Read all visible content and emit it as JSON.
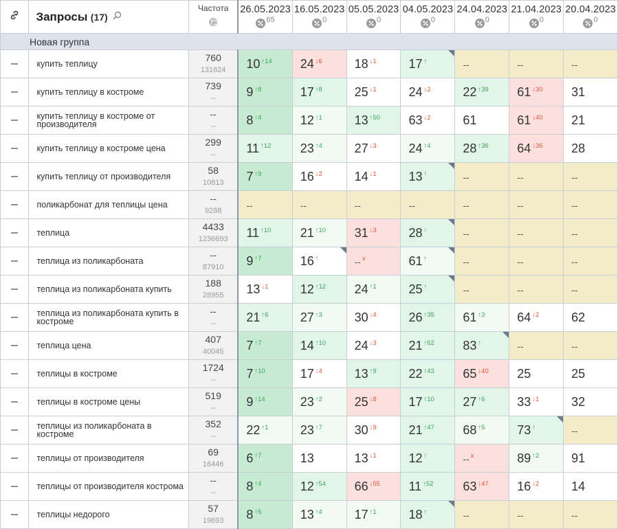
{
  "header": {
    "title": "Запросы",
    "count": "(17)",
    "freq_label": "Частота",
    "dates": [
      {
        "date": "26.05.2023",
        "count": "65"
      },
      {
        "date": "16.05.2023",
        "count": "0"
      },
      {
        "date": "05.05.2023",
        "count": "0"
      },
      {
        "date": "04.05.2023",
        "count": "0"
      },
      {
        "date": "24.04.2023",
        "count": "0"
      },
      {
        "date": "21.04.2023",
        "count": "0"
      },
      {
        "date": "20.04.2023",
        "count": "0"
      }
    ]
  },
  "group": {
    "name": "Новая группа"
  },
  "colors": {
    "green_strong": "#c6ebd2",
    "green": "#e2f5e9",
    "green_light": "#f2faf4",
    "red": "#fbe0de",
    "yellow": "#f4ecc9",
    "up": "#3aa65a",
    "down": "#e0553a"
  },
  "rows": [
    {
      "query": "купить теплицу",
      "freq": "760",
      "freq2": "131624",
      "cells": [
        {
          "v": "10",
          "d": "↑14",
          "t": "up",
          "bg": "g1"
        },
        {
          "v": "24",
          "d": "↓6",
          "t": "dn",
          "bg": "r"
        },
        {
          "v": "18",
          "d": "↓1",
          "t": "dn",
          "bg": "w"
        },
        {
          "v": "17",
          "d": "↑",
          "t": "up",
          "bg": "g2",
          "tri": true
        },
        {
          "v": "--",
          "bg": "y",
          "nd": true
        },
        {
          "v": "--",
          "bg": "y",
          "nd": true
        },
        {
          "v": "--",
          "bg": "y",
          "nd": true
        }
      ]
    },
    {
      "query": "купить теплицу в костроме",
      "freq": "739",
      "freq2": "--",
      "cells": [
        {
          "v": "9",
          "d": "↑8",
          "t": "up",
          "bg": "g1"
        },
        {
          "v": "17",
          "d": "↑8",
          "t": "up",
          "bg": "g2"
        },
        {
          "v": "25",
          "d": "↓1",
          "t": "dn",
          "bg": "w"
        },
        {
          "v": "24",
          "d": "↓2",
          "t": "dn",
          "bg": "w"
        },
        {
          "v": "22",
          "d": "↑39",
          "t": "up",
          "bg": "g2"
        },
        {
          "v": "61",
          "d": "↓30",
          "t": "dn",
          "bg": "r"
        },
        {
          "v": "31",
          "bg": "w"
        }
      ]
    },
    {
      "query": "купить теплицу в костроме от производителя",
      "freq": "--",
      "freq2": "--",
      "cells": [
        {
          "v": "8",
          "d": "↑4",
          "t": "up",
          "bg": "g1"
        },
        {
          "v": "12",
          "d": "↑1",
          "t": "up",
          "bg": "g3"
        },
        {
          "v": "13",
          "d": "↑50",
          "t": "up",
          "bg": "g2"
        },
        {
          "v": "63",
          "d": "↓2",
          "t": "dn",
          "bg": "w"
        },
        {
          "v": "61",
          "bg": "w"
        },
        {
          "v": "61",
          "d": "↓40",
          "t": "dn",
          "bg": "r"
        },
        {
          "v": "21",
          "bg": "w"
        }
      ]
    },
    {
      "query": "купить теплицу в костроме цена",
      "freq": "299",
      "freq2": "--",
      "cells": [
        {
          "v": "11",
          "d": "↑12",
          "t": "up",
          "bg": "g2"
        },
        {
          "v": "23",
          "d": "↑4",
          "t": "up",
          "bg": "g3"
        },
        {
          "v": "27",
          "d": "↓3",
          "t": "dn",
          "bg": "w"
        },
        {
          "v": "24",
          "d": "↑4",
          "t": "up",
          "bg": "g3"
        },
        {
          "v": "28",
          "d": "↑36",
          "t": "up",
          "bg": "g2"
        },
        {
          "v": "64",
          "d": "↓36",
          "t": "dn",
          "bg": "r"
        },
        {
          "v": "28",
          "bg": "w"
        }
      ]
    },
    {
      "query": "купить теплицу от производителя",
      "freq": "58",
      "freq2": "10813",
      "cells": [
        {
          "v": "7",
          "d": "↑9",
          "t": "up",
          "bg": "g1"
        },
        {
          "v": "16",
          "d": "↓2",
          "t": "dn",
          "bg": "w"
        },
        {
          "v": "14",
          "d": "↓1",
          "t": "dn",
          "bg": "w"
        },
        {
          "v": "13",
          "d": "↑",
          "t": "up",
          "bg": "g2",
          "tri": true
        },
        {
          "v": "--",
          "bg": "y",
          "nd": true
        },
        {
          "v": "--",
          "bg": "y",
          "nd": true
        },
        {
          "v": "--",
          "bg": "y",
          "nd": true
        }
      ]
    },
    {
      "query": "поликарбонат для теплицы цена",
      "freq": "--",
      "freq2": "9288",
      "cells": [
        {
          "v": "--",
          "bg": "y",
          "nd": true
        },
        {
          "v": "--",
          "bg": "y",
          "nd": true
        },
        {
          "v": "--",
          "bg": "y",
          "nd": true
        },
        {
          "v": "--",
          "bg": "y",
          "nd": true
        },
        {
          "v": "--",
          "bg": "y",
          "nd": true
        },
        {
          "v": "--",
          "bg": "y",
          "nd": true
        },
        {
          "v": "--",
          "bg": "y",
          "nd": true
        }
      ]
    },
    {
      "query": "теплица",
      "freq": "4433",
      "freq2": "1236693",
      "cells": [
        {
          "v": "11",
          "d": "↑10",
          "t": "up",
          "bg": "g2"
        },
        {
          "v": "21",
          "d": "↑10",
          "t": "up",
          "bg": "g3"
        },
        {
          "v": "31",
          "d": "↓3",
          "t": "dn",
          "bg": "r"
        },
        {
          "v": "28",
          "d": "↑",
          "t": "up",
          "bg": "g2",
          "tri": true
        },
        {
          "v": "--",
          "bg": "y",
          "nd": true
        },
        {
          "v": "--",
          "bg": "y",
          "nd": true
        },
        {
          "v": "--",
          "bg": "y",
          "nd": true
        }
      ]
    },
    {
      "query": "теплица из поликарбоната",
      "freq": "--",
      "freq2": "87910",
      "cells": [
        {
          "v": "9",
          "d": "↑7",
          "t": "up",
          "bg": "g1"
        },
        {
          "v": "16",
          "d": "↑",
          "t": "up",
          "bg": "w",
          "tri": true
        },
        {
          "v": "--",
          "d": "x",
          "t": "dn",
          "bg": "r",
          "nd": true
        },
        {
          "v": "61",
          "d": "↑",
          "t": "up",
          "bg": "g3",
          "tri": true
        },
        {
          "v": "--",
          "bg": "y",
          "nd": true
        },
        {
          "v": "--",
          "bg": "y",
          "nd": true
        },
        {
          "v": "--",
          "bg": "y",
          "nd": true
        }
      ]
    },
    {
      "query": "теплица из поликарбоната купить",
      "freq": "188",
      "freq2": "28955",
      "cells": [
        {
          "v": "13",
          "d": "↓1",
          "t": "dn",
          "bg": "w"
        },
        {
          "v": "12",
          "d": "↑12",
          "t": "up",
          "bg": "g2"
        },
        {
          "v": "24",
          "d": "↑1",
          "t": "up",
          "bg": "g3"
        },
        {
          "v": "25",
          "d": "↑",
          "t": "up",
          "bg": "g2",
          "tri": true
        },
        {
          "v": "--",
          "bg": "y",
          "nd": true
        },
        {
          "v": "--",
          "bg": "y",
          "nd": true
        },
        {
          "v": "--",
          "bg": "y",
          "nd": true
        }
      ]
    },
    {
      "query": "теплица из поликарбоната купить в костроме",
      "freq": "--",
      "freq2": "--",
      "cells": [
        {
          "v": "21",
          "d": "↑6",
          "t": "up",
          "bg": "g2"
        },
        {
          "v": "27",
          "d": "↑3",
          "t": "up",
          "bg": "g3"
        },
        {
          "v": "30",
          "d": "↓4",
          "t": "dn",
          "bg": "w"
        },
        {
          "v": "26",
          "d": "↑35",
          "t": "up",
          "bg": "g2"
        },
        {
          "v": "61",
          "d": "↑3",
          "t": "up",
          "bg": "g3"
        },
        {
          "v": "64",
          "d": "↓2",
          "t": "dn",
          "bg": "w"
        },
        {
          "v": "62",
          "bg": "w"
        }
      ]
    },
    {
      "query": "теплица цена",
      "freq": "407",
      "freq2": "40045",
      "cells": [
        {
          "v": "7",
          "d": "↑7",
          "t": "up",
          "bg": "g1"
        },
        {
          "v": "14",
          "d": "↑10",
          "t": "up",
          "bg": "g2"
        },
        {
          "v": "24",
          "d": "↓3",
          "t": "dn",
          "bg": "w"
        },
        {
          "v": "21",
          "d": "↑62",
          "t": "up",
          "bg": "g2"
        },
        {
          "v": "83",
          "d": "↑",
          "t": "up",
          "bg": "g2",
          "tri": true
        },
        {
          "v": "--",
          "bg": "y",
          "nd": true
        },
        {
          "v": "--",
          "bg": "y",
          "nd": true
        }
      ]
    },
    {
      "query": "теплицы в костроме",
      "freq": "1724",
      "freq2": "--",
      "cells": [
        {
          "v": "7",
          "d": "↑10",
          "t": "up",
          "bg": "g1"
        },
        {
          "v": "17",
          "d": "↓4",
          "t": "dn",
          "bg": "w"
        },
        {
          "v": "13",
          "d": "↑9",
          "t": "up",
          "bg": "g2"
        },
        {
          "v": "22",
          "d": "↑43",
          "t": "up",
          "bg": "g2"
        },
        {
          "v": "65",
          "d": "↓40",
          "t": "dn",
          "bg": "r"
        },
        {
          "v": "25",
          "bg": "w"
        },
        {
          "v": "25",
          "bg": "w"
        }
      ]
    },
    {
      "query": "теплицы в костроме цены",
      "freq": "519",
      "freq2": "--",
      "cells": [
        {
          "v": "9",
          "d": "↑14",
          "t": "up",
          "bg": "g1"
        },
        {
          "v": "23",
          "d": "↑2",
          "t": "up",
          "bg": "g3"
        },
        {
          "v": "25",
          "d": "↓8",
          "t": "dn",
          "bg": "r"
        },
        {
          "v": "17",
          "d": "↑10",
          "t": "up",
          "bg": "g2"
        },
        {
          "v": "27",
          "d": "↑6",
          "t": "up",
          "bg": "g2"
        },
        {
          "v": "33",
          "d": "↓1",
          "t": "dn",
          "bg": "w"
        },
        {
          "v": "32",
          "bg": "w"
        }
      ]
    },
    {
      "query": "теплицы из поликарбоната в костроме",
      "freq": "352",
      "freq2": "--",
      "cells": [
        {
          "v": "22",
          "d": "↑1",
          "t": "up",
          "bg": "g3"
        },
        {
          "v": "23",
          "d": "↑7",
          "t": "up",
          "bg": "g3"
        },
        {
          "v": "30",
          "d": "↓9",
          "t": "dn",
          "bg": "w"
        },
        {
          "v": "21",
          "d": "↑47",
          "t": "up",
          "bg": "g2"
        },
        {
          "v": "68",
          "d": "↑5",
          "t": "up",
          "bg": "g3"
        },
        {
          "v": "73",
          "d": "↑",
          "t": "up",
          "bg": "g2",
          "tri": true
        },
        {
          "v": "--",
          "bg": "y",
          "nd": true
        }
      ]
    },
    {
      "query": "теплицы от производителя",
      "freq": "69",
      "freq2": "16446",
      "cells": [
        {
          "v": "6",
          "d": "↑7",
          "t": "up",
          "bg": "g1"
        },
        {
          "v": "13",
          "bg": "w"
        },
        {
          "v": "13",
          "d": "↓1",
          "t": "dn",
          "bg": "w"
        },
        {
          "v": "12",
          "d": "↑",
          "t": "up",
          "bg": "g2"
        },
        {
          "v": "--",
          "d": "x",
          "t": "dn",
          "bg": "r",
          "nd": true
        },
        {
          "v": "89",
          "d": "↑2",
          "t": "up",
          "bg": "g3"
        },
        {
          "v": "91",
          "bg": "w"
        }
      ]
    },
    {
      "query": "теплицы от производителя кострома",
      "freq": "--",
      "freq2": "--",
      "cells": [
        {
          "v": "8",
          "d": "↑4",
          "t": "up",
          "bg": "g1"
        },
        {
          "v": "12",
          "d": "↑54",
          "t": "up",
          "bg": "g2"
        },
        {
          "v": "66",
          "d": "↓55",
          "t": "dn",
          "bg": "r"
        },
        {
          "v": "11",
          "d": "↑52",
          "t": "up",
          "bg": "g2"
        },
        {
          "v": "63",
          "d": "↓47",
          "t": "dn",
          "bg": "r"
        },
        {
          "v": "16",
          "d": "↓2",
          "t": "dn",
          "bg": "w"
        },
        {
          "v": "14",
          "bg": "w"
        }
      ]
    },
    {
      "query": "теплицы недорого",
      "freq": "57",
      "freq2": "19693",
      "cells": [
        {
          "v": "8",
          "d": "↑5",
          "t": "up",
          "bg": "g1"
        },
        {
          "v": "13",
          "d": "↑4",
          "t": "up",
          "bg": "g3"
        },
        {
          "v": "17",
          "d": "↑1",
          "t": "up",
          "bg": "g3"
        },
        {
          "v": "18",
          "d": "↑",
          "t": "up",
          "bg": "g2",
          "tri": true
        },
        {
          "v": "--",
          "bg": "y",
          "nd": true
        },
        {
          "v": "--",
          "bg": "y",
          "nd": true
        },
        {
          "v": "--",
          "bg": "y",
          "nd": true
        }
      ]
    }
  ]
}
